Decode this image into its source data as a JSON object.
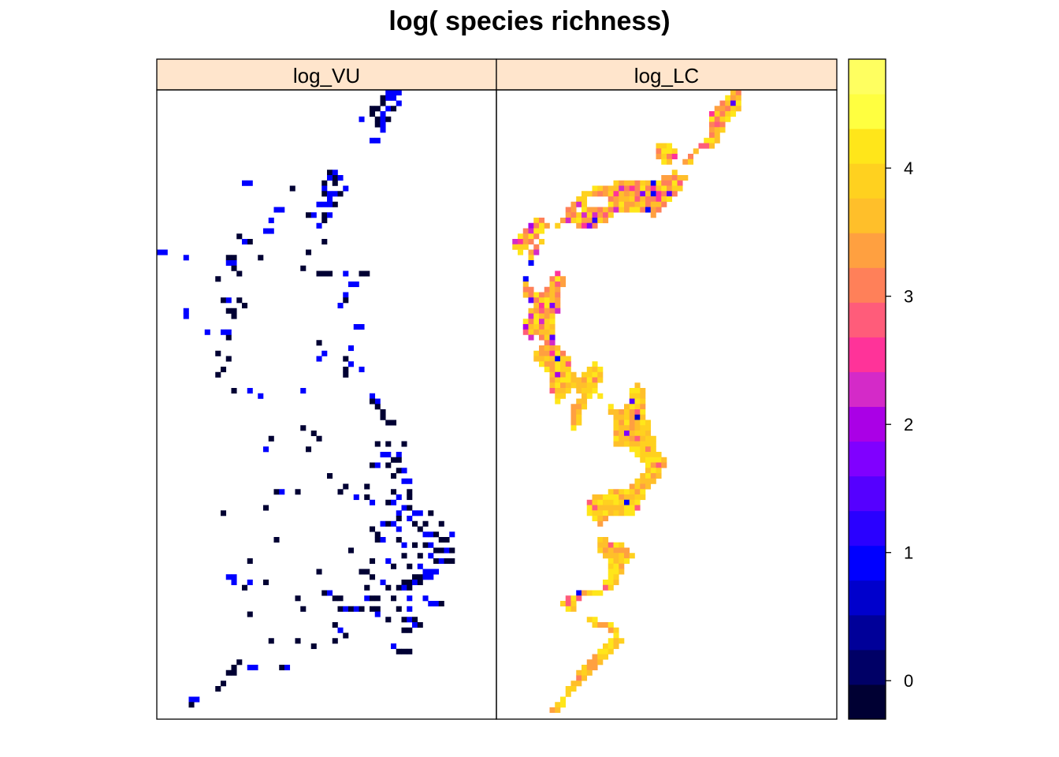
{
  "chart_data": {
    "type": "heatmap",
    "title": "log( species richness)",
    "panels": [
      {
        "name": "log_VU"
      },
      {
        "name": "log_LC"
      }
    ],
    "colorbar": {
      "range": [
        -0.3,
        4.85
      ],
      "ticks": [
        0,
        1,
        2,
        3,
        4
      ],
      "tick_labels": [
        "0",
        "1",
        "2",
        "3",
        "4"
      ],
      "palette": [
        "#000033",
        "#000066",
        "#000099",
        "#0000CC",
        "#0000FF",
        "#2A00FF",
        "#5500FF",
        "#8000FF",
        "#AA00E6",
        "#D42AC8",
        "#FF3399",
        "#FF5C7A",
        "#FF8059",
        "#FFA040",
        "#FFBF2A",
        "#FFD11F",
        "#FFE61A",
        "#FFFF40",
        "#FFFF60"
      ]
    },
    "map_extent": {
      "cols": 64,
      "rows": 118
    },
    "log_VU_cells": [
      [
        43,
        0,
        1
      ],
      [
        44,
        0,
        1
      ],
      [
        45,
        0,
        1
      ],
      [
        42,
        1,
        0
      ],
      [
        43,
        1,
        1
      ],
      [
        44,
        1,
        1
      ],
      [
        42,
        2,
        0
      ],
      [
        45,
        2,
        1
      ],
      [
        40,
        3,
        0
      ],
      [
        41,
        3,
        0
      ],
      [
        43,
        3,
        1
      ],
      [
        44,
        3,
        0
      ],
      [
        40,
        4,
        0
      ],
      [
        42,
        4,
        1
      ],
      [
        38,
        5,
        1
      ],
      [
        41,
        5,
        0
      ],
      [
        42,
        5,
        1
      ],
      [
        43,
        5,
        0
      ],
      [
        41,
        6,
        0
      ],
      [
        42,
        6,
        1
      ],
      [
        42,
        7,
        1
      ],
      [
        40,
        9,
        1
      ],
      [
        41,
        9,
        1
      ],
      [
        32,
        15,
        0
      ],
      [
        33,
        15,
        1
      ],
      [
        33,
        16,
        0
      ],
      [
        32,
        16,
        1
      ],
      [
        34,
        16,
        1
      ],
      [
        31,
        17,
        0
      ],
      [
        33,
        17,
        0
      ],
      [
        31,
        18,
        1
      ],
      [
        35,
        18,
        1
      ],
      [
        16,
        17,
        1
      ],
      [
        17,
        17,
        1
      ],
      [
        25,
        18,
        0
      ],
      [
        31,
        19,
        0
      ],
      [
        32,
        19,
        1
      ],
      [
        33,
        19,
        1
      ],
      [
        34,
        19,
        0
      ],
      [
        32,
        20,
        1
      ],
      [
        33,
        21,
        0
      ],
      [
        30,
        21,
        1
      ],
      [
        31,
        21,
        1
      ],
      [
        32,
        21,
        1
      ],
      [
        22,
        22,
        1
      ],
      [
        23,
        22,
        1
      ],
      [
        28,
        23,
        0
      ],
      [
        29,
        23,
        1
      ],
      [
        31,
        23,
        0
      ],
      [
        32,
        23,
        1
      ],
      [
        21,
        24,
        1
      ],
      [
        31,
        24,
        0
      ],
      [
        30,
        25,
        1
      ],
      [
        20,
        26,
        1
      ],
      [
        21,
        26,
        1
      ],
      [
        15,
        27,
        0
      ],
      [
        17,
        28,
        0
      ],
      [
        31,
        28,
        0
      ],
      [
        28,
        30,
        0
      ],
      [
        16,
        28,
        1
      ],
      [
        0,
        30,
        1
      ],
      [
        1,
        30,
        1
      ],
      [
        5,
        31,
        1
      ],
      [
        13,
        31,
        0
      ],
      [
        14,
        31,
        0
      ],
      [
        19,
        31,
        0
      ],
      [
        13,
        32,
        1
      ],
      [
        14,
        32,
        1
      ],
      [
        14,
        33,
        0
      ],
      [
        15,
        34,
        0
      ],
      [
        27,
        33,
        0
      ],
      [
        30,
        34,
        0
      ],
      [
        31,
        34,
        0
      ],
      [
        32,
        34,
        0
      ],
      [
        35,
        34,
        1
      ],
      [
        38,
        34,
        0
      ],
      [
        39,
        34,
        0
      ],
      [
        11,
        35,
        0
      ],
      [
        36,
        36,
        1
      ],
      [
        37,
        36,
        1
      ],
      [
        35,
        38,
        1
      ],
      [
        12,
        39,
        0
      ],
      [
        13,
        39,
        1
      ],
      [
        15,
        39,
        0
      ],
      [
        16,
        40,
        0
      ],
      [
        35,
        39,
        0
      ],
      [
        34,
        40,
        1
      ],
      [
        5,
        41,
        1
      ],
      [
        13,
        41,
        0
      ],
      [
        14,
        41,
        0
      ],
      [
        5,
        42,
        1
      ],
      [
        14,
        42,
        0
      ],
      [
        37,
        44,
        1
      ],
      [
        38,
        44,
        1
      ],
      [
        9,
        45,
        1
      ],
      [
        12,
        45,
        1
      ],
      [
        13,
        46,
        0
      ],
      [
        13,
        45,
        1
      ],
      [
        30,
        47,
        0
      ],
      [
        36,
        48,
        1
      ],
      [
        11,
        49,
        0
      ],
      [
        31,
        49,
        1
      ],
      [
        30,
        50,
        1
      ],
      [
        35,
        50,
        0
      ],
      [
        13,
        50,
        0
      ],
      [
        36,
        51,
        1
      ],
      [
        35,
        52,
        0
      ],
      [
        12,
        52,
        0
      ],
      [
        11,
        53,
        0
      ],
      [
        35,
        53,
        0
      ],
      [
        38,
        52,
        1
      ],
      [
        14,
        56,
        0
      ],
      [
        17,
        56,
        1
      ],
      [
        19,
        57,
        1
      ],
      [
        27,
        56,
        1
      ],
      [
        40,
        57,
        1
      ],
      [
        41,
        58,
        1
      ],
      [
        40,
        58,
        0
      ],
      [
        41,
        59,
        0
      ],
      [
        42,
        60,
        0
      ],
      [
        42,
        61,
        0
      ],
      [
        43,
        62,
        0
      ],
      [
        44,
        62,
        0
      ],
      [
        27,
        63,
        0
      ],
      [
        29,
        64,
        0
      ],
      [
        30,
        65,
        0
      ],
      [
        21,
        65,
        0
      ],
      [
        41,
        66,
        0
      ],
      [
        43,
        66,
        0
      ],
      [
        46,
        66,
        0
      ],
      [
        20,
        67,
        1
      ],
      [
        28,
        67,
        0
      ],
      [
        42,
        68,
        1
      ],
      [
        43,
        68,
        1
      ],
      [
        45,
        68,
        1
      ],
      [
        44,
        69,
        0
      ],
      [
        45,
        69,
        0
      ],
      [
        40,
        70,
        0
      ],
      [
        41,
        70,
        1
      ],
      [
        43,
        70,
        0
      ],
      [
        45,
        71,
        0
      ],
      [
        46,
        71,
        1
      ],
      [
        32,
        72,
        0
      ],
      [
        44,
        72,
        0
      ],
      [
        46,
        73,
        1
      ],
      [
        47,
        73,
        1
      ],
      [
        35,
        74,
        0
      ],
      [
        34,
        75,
        0
      ],
      [
        22,
        75,
        0
      ],
      [
        23,
        75,
        1
      ],
      [
        26,
        75,
        0
      ],
      [
        39,
        74,
        0
      ],
      [
        37,
        76,
        1
      ],
      [
        44,
        75,
        0
      ],
      [
        47,
        75,
        0
      ],
      [
        45,
        76,
        1
      ],
      [
        47,
        76,
        0
      ],
      [
        39,
        76,
        0
      ],
      [
        40,
        77,
        1
      ],
      [
        43,
        77,
        0
      ],
      [
        44,
        77,
        1
      ],
      [
        20,
        78,
        0
      ],
      [
        46,
        78,
        1
      ],
      [
        47,
        78,
        0
      ],
      [
        48,
        79,
        1
      ],
      [
        49,
        79,
        1
      ],
      [
        45,
        79,
        1
      ],
      [
        51,
        79,
        0
      ],
      [
        12,
        79,
        0
      ],
      [
        45,
        80,
        0
      ],
      [
        47,
        80,
        1
      ],
      [
        48,
        81,
        0
      ],
      [
        50,
        81,
        0
      ],
      [
        53,
        81,
        0
      ],
      [
        42,
        81,
        1
      ],
      [
        43,
        81,
        0
      ],
      [
        44,
        81,
        1
      ],
      [
        45,
        82,
        1
      ],
      [
        40,
        82,
        0
      ],
      [
        41,
        83,
        0
      ],
      [
        49,
        82,
        0
      ],
      [
        50,
        83,
        1
      ],
      [
        51,
        83,
        1
      ],
      [
        52,
        83,
        0
      ],
      [
        53,
        84,
        0
      ],
      [
        54,
        84,
        0
      ],
      [
        55,
        83,
        1
      ],
      [
        22,
        84,
        0
      ],
      [
        41,
        84,
        0
      ],
      [
        42,
        84,
        1
      ],
      [
        45,
        84,
        0
      ],
      [
        46,
        85,
        1
      ],
      [
        48,
        85,
        0
      ],
      [
        50,
        85,
        0
      ],
      [
        51,
        85,
        1
      ],
      [
        52,
        86,
        0
      ],
      [
        53,
        86,
        0
      ],
      [
        54,
        86,
        1
      ],
      [
        55,
        86,
        0
      ],
      [
        17,
        88,
        0
      ],
      [
        36,
        86,
        0
      ],
      [
        46,
        87,
        0
      ],
      [
        49,
        87,
        0
      ],
      [
        51,
        87,
        1
      ],
      [
        52,
        88,
        0
      ],
      [
        53,
        88,
        1
      ],
      [
        54,
        88,
        0
      ],
      [
        55,
        88,
        0
      ],
      [
        40,
        88,
        0
      ],
      [
        43,
        88,
        1
      ],
      [
        44,
        89,
        0
      ],
      [
        47,
        89,
        0
      ],
      [
        49,
        89,
        1
      ],
      [
        50,
        90,
        1
      ],
      [
        51,
        90,
        1
      ],
      [
        52,
        90,
        1
      ],
      [
        30,
        90,
        0
      ],
      [
        38,
        90,
        0
      ],
      [
        39,
        90,
        0
      ],
      [
        40,
        91,
        0
      ],
      [
        48,
        91,
        0
      ],
      [
        49,
        91,
        0
      ],
      [
        50,
        91,
        1
      ],
      [
        51,
        91,
        1
      ],
      [
        46,
        92,
        0
      ],
      [
        47,
        92,
        0
      ],
      [
        48,
        92,
        1
      ],
      [
        49,
        92,
        0
      ],
      [
        13,
        91,
        1
      ],
      [
        14,
        91,
        1
      ],
      [
        14,
        92,
        1
      ],
      [
        20,
        92,
        0
      ],
      [
        17,
        92,
        1
      ],
      [
        16,
        93,
        0
      ],
      [
        42,
        92,
        1
      ],
      [
        43,
        93,
        0
      ],
      [
        45,
        93,
        0
      ],
      [
        46,
        93,
        1
      ],
      [
        47,
        93,
        0
      ],
      [
        39,
        93,
        0
      ],
      [
        31,
        94,
        0
      ],
      [
        32,
        94,
        1
      ],
      [
        33,
        95,
        0
      ],
      [
        26,
        95,
        0
      ],
      [
        34,
        95,
        0
      ],
      [
        39,
        95,
        1
      ],
      [
        40,
        95,
        0
      ],
      [
        41,
        95,
        0
      ],
      [
        44,
        95,
        0
      ],
      [
        47,
        95,
        1
      ],
      [
        50,
        95,
        1
      ],
      [
        51,
        96,
        1
      ],
      [
        52,
        96,
        1
      ],
      [
        53,
        96,
        0
      ],
      [
        27,
        97,
        0
      ],
      [
        34,
        97,
        0
      ],
      [
        35,
        97,
        1
      ],
      [
        36,
        97,
        0
      ],
      [
        37,
        97,
        1
      ],
      [
        38,
        97,
        0
      ],
      [
        40,
        97,
        0
      ],
      [
        41,
        97,
        0
      ],
      [
        45,
        97,
        0
      ],
      [
        47,
        97,
        1
      ],
      [
        17,
        98,
        0
      ],
      [
        41,
        98,
        1
      ],
      [
        43,
        99,
        0
      ],
      [
        46,
        99,
        0
      ],
      [
        47,
        99,
        1
      ],
      [
        48,
        99,
        0
      ],
      [
        48,
        100,
        1
      ],
      [
        49,
        100,
        0
      ],
      [
        46,
        101,
        0
      ],
      [
        47,
        101,
        0
      ],
      [
        33,
        100,
        0
      ],
      [
        34,
        101,
        1
      ],
      [
        35,
        102,
        0
      ],
      [
        21,
        103,
        0
      ],
      [
        26,
        103,
        0
      ],
      [
        33,
        103,
        0
      ],
      [
        29,
        104,
        0
      ],
      [
        44,
        104,
        1
      ],
      [
        45,
        105,
        0
      ],
      [
        46,
        105,
        0
      ],
      [
        47,
        105,
        0
      ],
      [
        15,
        107,
        0
      ],
      [
        14,
        108,
        0
      ],
      [
        17,
        108,
        1
      ],
      [
        18,
        108,
        1
      ],
      [
        23,
        108,
        0
      ],
      [
        24,
        108,
        1
      ],
      [
        13,
        109,
        0
      ],
      [
        14,
        109,
        0
      ],
      [
        12,
        111,
        0
      ],
      [
        11,
        112,
        0
      ],
      [
        6,
        114,
        1
      ],
      [
        7,
        114,
        1
      ],
      [
        6,
        115,
        0
      ]
    ]
  }
}
